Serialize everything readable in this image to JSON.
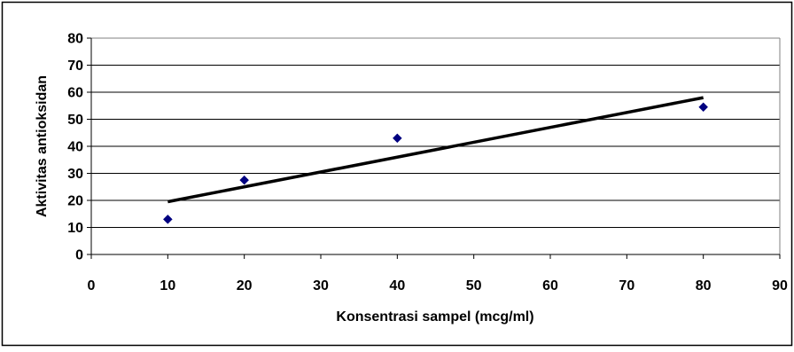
{
  "chart_data": {
    "type": "scatter",
    "title": "",
    "xlabel": "Konsentrasi sampel (mcg/ml)",
    "ylabel": "Aktivitas antioksidan",
    "xlim": [
      0,
      90
    ],
    "ylim": [
      0,
      80
    ],
    "x_ticks": [
      "0",
      "10",
      "20",
      "30",
      "40",
      "50",
      "60",
      "70",
      "80",
      "90"
    ],
    "y_ticks": [
      "0",
      "10",
      "20",
      "30",
      "40",
      "50",
      "60",
      "70",
      "80"
    ],
    "grid": "horizontal",
    "legend": "none",
    "series": [
      {
        "marker": "diamond",
        "color": "#000080",
        "x": [
          10,
          20,
          40,
          80
        ],
        "y": [
          13,
          27.5,
          43,
          54.5
        ]
      }
    ],
    "trendline": {
      "type": "linear",
      "color": "#000000",
      "x": [
        10,
        80
      ],
      "y": [
        19.5,
        58
      ]
    }
  }
}
